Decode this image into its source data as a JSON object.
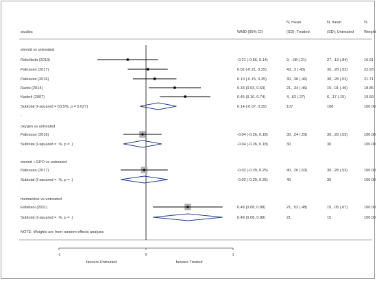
{
  "chart_data": {
    "type": "forest",
    "headers": {
      "studies": "studies",
      "wmd": "WMD (95% CI)",
      "treated_line1": "N, mean",
      "treated_line2": "(SD); Treated",
      "untreated_line1": "N, mean",
      "untreated_line2": "(SD); Untreated",
      "weight_line1": "%",
      "weight_line2": "Weight"
    },
    "groups": [
      {
        "label": "steroid vs untreated",
        "studies": [
          {
            "name": "Rebolleda (2013)",
            "est": -0.21,
            "lo": -0.56,
            "hi": 0.14,
            "ci_text": "-0.21 (-0.56, 0.14)",
            "treated": "9, -.08 (.21)",
            "untreated": "27, .13 (.84)",
            "weight": "16.91",
            "w": 16.91
          },
          {
            "name": "Pakravan (2017)",
            "est": 0.02,
            "lo": -0.21,
            "hi": 0.25,
            "ci_text": "0.02 (-0.21, 0.25)",
            "treated": "43, .3 (.43)",
            "untreated": "30, .28 (.53)",
            "weight": "22.93",
            "w": 22.93
          },
          {
            "name": "Pakravan (2016)",
            "est": 0.1,
            "lo": -0.15,
            "hi": 0.35,
            "ci_text": "0.10 (-0.15, 0.35)",
            "treated": "30, .38 (.46)",
            "untreated": "30, .28 (.53)",
            "weight": "21.71",
            "w": 21.71
          },
          {
            "name": "Radoi (2014)",
            "est": 0.33,
            "lo": 0.03,
            "hi": 0.63,
            "ci_text": "0.33 (0.03, 0.63)",
            "treated": "21, .34 (.46)",
            "untreated": "15, .01 (.46)",
            "weight": "18.86",
            "w": 18.86
          },
          {
            "name": "Kaderli (2007)",
            "est": 0.45,
            "lo": 0.16,
            "hi": 0.74,
            "ci_text": "0.45 (0.16, 0.74)",
            "treated": "4, .62 (.27)",
            "untreated": "6, .17 (.15)",
            "weight": "19.59",
            "w": 19.59
          }
        ],
        "subtotal": {
          "label": "Subtotal  (I-squared = 63.5%, p = 0.027)",
          "est": 0.14,
          "lo": -0.07,
          "hi": 0.35,
          "ci_text": "0.14 (-0.07, 0.35)",
          "treated": "107",
          "untreated": "108",
          "weight": "100.00"
        }
      },
      {
        "label": "oxygen vs untreated",
        "studies": [
          {
            "name": "Pakravan (2016)",
            "est": -0.04,
            "lo": -0.26,
            "hi": 0.18,
            "ci_text": "-0.04 (-0.26, 0.18)",
            "treated": "30, .24 (.29)",
            "untreated": "30, .28 (.53)",
            "weight": "100.00",
            "w": 100
          }
        ],
        "subtotal": {
          "label": "Subtotal  (I-squared = .%, p = .)",
          "est": -0.04,
          "lo": -0.26,
          "hi": 0.18,
          "ci_text": "-0.04 (-0.26, 0.18)",
          "treated": "30",
          "untreated": "30",
          "weight": "100.00"
        }
      },
      {
        "label": "steroid + EPO vs untreated",
        "studies": [
          {
            "name": "Pakravan (2017)",
            "est": -0.02,
            "lo": -0.29,
            "hi": 0.25,
            "ci_text": "-0.02 (-0.29, 0.25)",
            "treated": "40, .26 (.63)",
            "untreated": "30, .28 (.53)",
            "weight": "100.00",
            "w": 100
          }
        ],
        "subtotal": {
          "label": "Subtotal  (I-squared = .%, p = .)",
          "est": -0.02,
          "lo": -0.29,
          "hi": 0.25,
          "ci_text": "-0.02 (-0.29, 0.25)",
          "treated": "40",
          "untreated": "30",
          "weight": "100.00"
        }
      },
      {
        "label": "memantine vs untreated",
        "studies": [
          {
            "name": "Esfahani (2011)",
            "est": 0.48,
            "lo": 0.08,
            "hi": 0.88,
            "ci_text": "0.48 (0.08, 0.88)",
            "treated": "21, .53 (.48)",
            "untreated": "15, .05 (.67)",
            "weight": "100.00",
            "w": 100
          }
        ],
        "subtotal": {
          "label": "Subtotal  (I-squared = .%, p = .)",
          "est": 0.48,
          "lo": 0.08,
          "hi": 0.88,
          "ci_text": "0.48 (0.08, 0.88)",
          "treated": "21",
          "untreated": "15",
          "weight": "100.00"
        }
      }
    ],
    "note": "NOTE: Weights are from random effects analysis",
    "x_axis": {
      "ticks": [
        -1,
        0,
        1
      ],
      "tick_labels": [
        "-1",
        "0",
        "1"
      ],
      "left_label": "favours Untreated",
      "right_label": "favours Treated",
      "range": [
        -1,
        1
      ]
    },
    "colors": {
      "ci_line": "#000000",
      "weight_box": "#b0b0b0",
      "point": "#000000",
      "diamond": "#1e3c8c",
      "rule": "#555555",
      "zero_line": "#000000"
    }
  }
}
